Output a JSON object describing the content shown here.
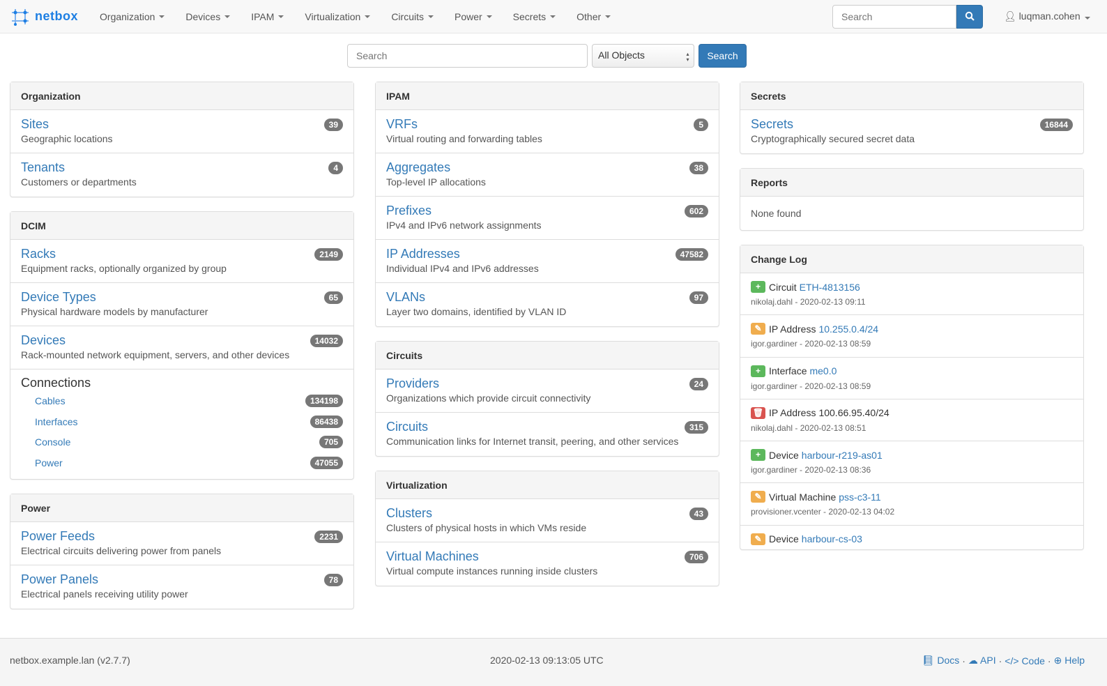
{
  "navbar": {
    "brand": "netbox",
    "menus": [
      "Organization",
      "Devices",
      "IPAM",
      "Virtualization",
      "Circuits",
      "Power",
      "Secrets",
      "Other"
    ],
    "search_placeholder": "Search",
    "user": "luqman.cohen"
  },
  "search": {
    "placeholder": "Search",
    "object_type": "All Objects",
    "button": "Search"
  },
  "columns": {
    "left": [
      {
        "title": "Organization",
        "items": [
          {
            "name": "Sites",
            "desc": "Geographic locations",
            "count": "39"
          },
          {
            "name": "Tenants",
            "desc": "Customers or departments",
            "count": "4"
          }
        ]
      },
      {
        "title": "DCIM",
        "items": [
          {
            "name": "Racks",
            "desc": "Equipment racks, optionally organized by group",
            "count": "2149"
          },
          {
            "name": "Device Types",
            "desc": "Physical hardware models by manufacturer",
            "count": "65"
          },
          {
            "name": "Devices",
            "desc": "Rack-mounted network equipment, servers, and other devices",
            "count": "14032"
          }
        ],
        "connections": {
          "title": "Connections",
          "items": [
            {
              "name": "Cables",
              "count": "134198"
            },
            {
              "name": "Interfaces",
              "count": "86438"
            },
            {
              "name": "Console",
              "count": "705"
            },
            {
              "name": "Power",
              "count": "47055"
            }
          ]
        }
      },
      {
        "title": "Power",
        "items": [
          {
            "name": "Power Feeds",
            "desc": "Electrical circuits delivering power from panels",
            "count": "2231"
          },
          {
            "name": "Power Panels",
            "desc": "Electrical panels receiving utility power",
            "count": "78"
          }
        ]
      }
    ],
    "middle": [
      {
        "title": "IPAM",
        "items": [
          {
            "name": "VRFs",
            "desc": "Virtual routing and forwarding tables",
            "count": "5"
          },
          {
            "name": "Aggregates",
            "desc": "Top-level IP allocations",
            "count": "38"
          },
          {
            "name": "Prefixes",
            "desc": "IPv4 and IPv6 network assignments",
            "count": "602"
          },
          {
            "name": "IP Addresses",
            "desc": "Individual IPv4 and IPv6 addresses",
            "count": "47582"
          },
          {
            "name": "VLANs",
            "desc": "Layer two domains, identified by VLAN ID",
            "count": "97"
          }
        ]
      },
      {
        "title": "Circuits",
        "items": [
          {
            "name": "Providers",
            "desc": "Organizations which provide circuit connectivity",
            "count": "24"
          },
          {
            "name": "Circuits",
            "desc": "Communication links for Internet transit, peering, and other services",
            "count": "315"
          }
        ]
      },
      {
        "title": "Virtualization",
        "items": [
          {
            "name": "Clusters",
            "desc": "Clusters of physical hosts in which VMs reside",
            "count": "43"
          },
          {
            "name": "Virtual Machines",
            "desc": "Virtual compute instances running inside clusters",
            "count": "706"
          }
        ]
      }
    ],
    "right": {
      "secrets": {
        "title": "Secrets",
        "items": [
          {
            "name": "Secrets",
            "desc": "Cryptographically secured secret data",
            "count": "16844"
          }
        ]
      },
      "reports": {
        "title": "Reports",
        "empty": "None found"
      },
      "changelog": {
        "title": "Change Log",
        "entries": [
          {
            "action": "create",
            "type": "Circuit",
            "object": "ETH-4813156",
            "meta": "nikolaj.dahl - 2020-02-13 09:11"
          },
          {
            "action": "update",
            "type": "IP Address",
            "object": "10.255.0.4/24",
            "meta": "igor.gardiner - 2020-02-13 08:59"
          },
          {
            "action": "create",
            "type": "Interface",
            "object": "me0.0",
            "meta": "igor.gardiner - 2020-02-13 08:59"
          },
          {
            "action": "delete",
            "type": "IP Address",
            "object": "100.66.95.40/24",
            "meta": "nikolaj.dahl - 2020-02-13 08:51"
          },
          {
            "action": "create",
            "type": "Device",
            "object": "harbour-r219-as01",
            "meta": "igor.gardiner - 2020-02-13 08:36"
          },
          {
            "action": "update",
            "type": "Virtual Machine",
            "object": "pss-c3-11",
            "meta": "provisioner.vcenter - 2020-02-13 04:02"
          },
          {
            "action": "update",
            "type": "Device",
            "object": "harbour-cs-03",
            "meta": ""
          }
        ]
      }
    }
  },
  "footer": {
    "hostname": "netbox.example.lan (v2.7.7)",
    "time": "2020-02-13 09:13:05 UTC",
    "links": [
      "Docs",
      "API",
      "Code",
      "Help"
    ]
  },
  "colors": {
    "primary": "#337ab7",
    "create": "#5cb85c",
    "update": "#f0ad4e",
    "delete": "#d9534f",
    "badge": "#777777"
  }
}
